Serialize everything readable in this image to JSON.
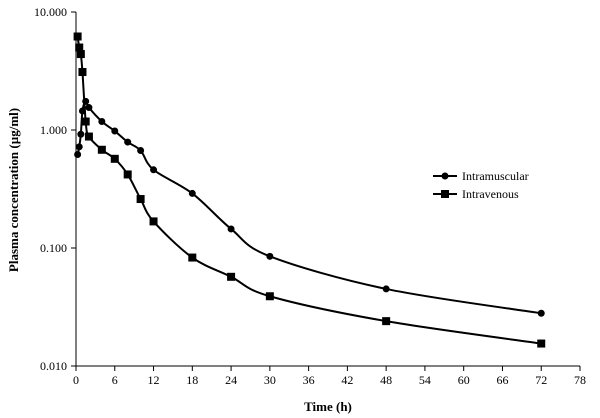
{
  "chart_data": {
    "type": "line",
    "title": "",
    "xlabel": "Time (h)",
    "ylabel": "Plasma concentration (µg/ml)",
    "xlim": [
      0,
      78
    ],
    "ylim": [
      0.01,
      10
    ],
    "yscale": "log",
    "grid": false,
    "legend_position": "right",
    "x_ticks": [
      0,
      6,
      12,
      18,
      24,
      30,
      36,
      42,
      48,
      54,
      60,
      66,
      72,
      78
    ],
    "x_tick_labels": [
      "0",
      "6",
      "12",
      "18",
      "24",
      "30",
      "36",
      "42",
      "48",
      "54",
      "60",
      "66",
      "72",
      "78"
    ],
    "y_ticks": [
      0.01,
      0.1,
      1,
      10
    ],
    "y_tick_labels": [
      "0.010",
      "0.100",
      "1.000",
      "10.000"
    ],
    "series": [
      {
        "name": "Intramuscular",
        "marker": "circle",
        "color": "#000000",
        "x": [
          0.25,
          0.5,
          0.75,
          1,
          1.5,
          2,
          4,
          6,
          8,
          10,
          12,
          18,
          24,
          30,
          48,
          72
        ],
        "y": [
          0.62,
          0.72,
          0.92,
          1.45,
          1.75,
          1.55,
          1.18,
          0.98,
          0.79,
          0.67,
          0.46,
          0.29,
          0.145,
          0.085,
          0.045,
          0.028
        ]
      },
      {
        "name": "Intravenous",
        "marker": "square",
        "color": "#000000",
        "x": [
          0.25,
          0.5,
          0.75,
          1,
          1.5,
          2,
          4,
          6,
          8,
          10,
          12,
          18,
          24,
          30,
          48,
          72
        ],
        "y": [
          6.2,
          5.0,
          4.4,
          3.1,
          1.18,
          0.88,
          0.68,
          0.57,
          0.42,
          0.26,
          0.168,
          0.083,
          0.057,
          0.039,
          0.024,
          0.0155
        ]
      }
    ]
  }
}
